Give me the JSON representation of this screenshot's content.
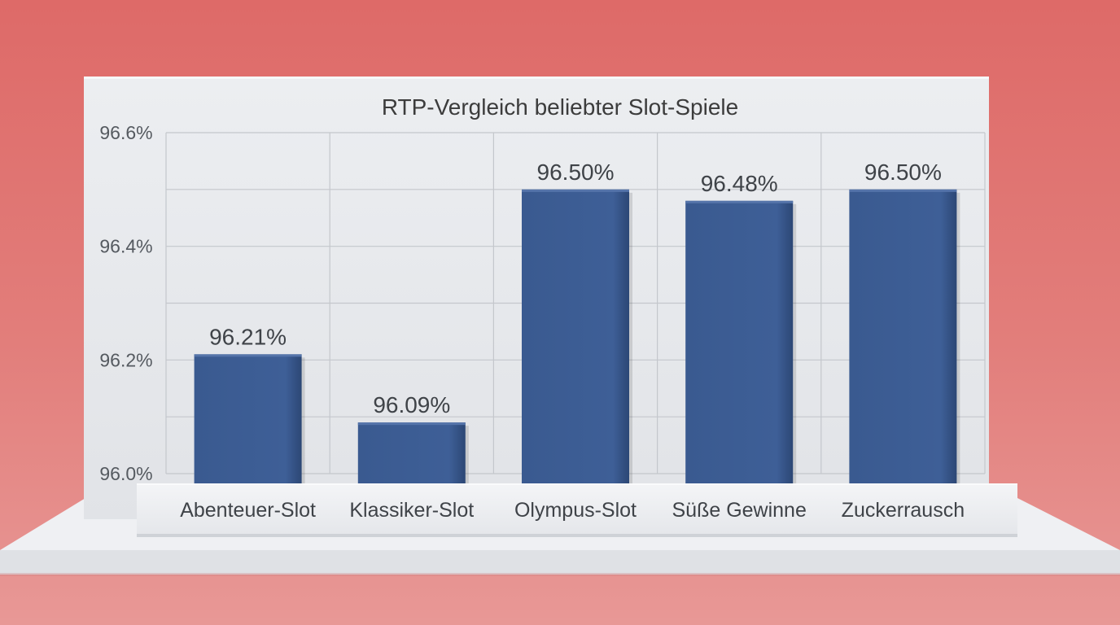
{
  "chart_data": {
    "type": "bar",
    "title": "RTP-Vergleich beliebter Slot-Spiele",
    "categories": [
      "Abenteuer-Slot",
      "Klassiker-Slot",
      "Olympus-Slot",
      "Süße Gewinne",
      "Zuckerrausch"
    ],
    "values": [
      96.21,
      96.09,
      96.5,
      96.48,
      96.5
    ],
    "value_labels": [
      "96.21%",
      "96.09%",
      "96.50%",
      "96.48%",
      "96.50%"
    ],
    "yticks": [
      "96.0%",
      "96.2%",
      "96.4%",
      "96.6%"
    ],
    "ylim": [
      96.0,
      96.6
    ],
    "grid": true,
    "bar_color": "#3b5b92"
  }
}
